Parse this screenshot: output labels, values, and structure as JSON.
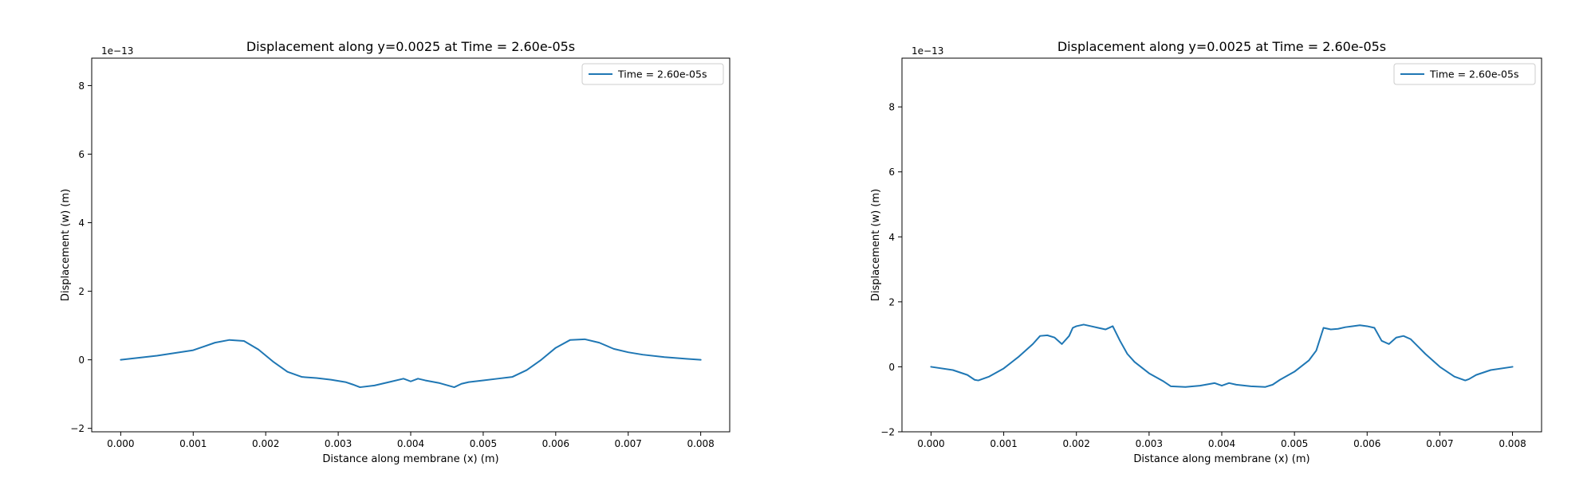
{
  "figure": {
    "background": "#ffffff",
    "line_color": "#1f77b4"
  },
  "chart_data": [
    {
      "type": "line",
      "title": "Displacement along y=0.0025 at Time = 2.60e-05s",
      "xlabel": "Distance along membrane (x) (m)",
      "ylabel": "Displacement (w) (m)",
      "y_offset_text": "1e−13",
      "xlim": [
        -0.0004,
        0.0084
      ],
      "ylim": [
        -2.1,
        8.8
      ],
      "xticks": [
        0.0,
        0.001,
        0.002,
        0.003,
        0.004,
        0.005,
        0.006,
        0.007,
        0.008
      ],
      "xtick_labels": [
        "0.000",
        "0.001",
        "0.002",
        "0.003",
        "0.004",
        "0.005",
        "0.006",
        "0.007",
        "0.008"
      ],
      "yticks": [
        -2,
        0,
        2,
        4,
        6,
        8
      ],
      "ytick_labels": [
        "−2",
        "0",
        "2",
        "4",
        "6",
        "8"
      ],
      "grid": false,
      "legend_position": "top-right",
      "series": [
        {
          "name": "Time = 2.60e-05s",
          "color": "#1f77b4",
          "x": [
            0.0,
            0.0005,
            0.001,
            0.0013,
            0.0015,
            0.0017,
            0.0019,
            0.0021,
            0.0023,
            0.0025,
            0.0027,
            0.0029,
            0.0031,
            0.0032,
            0.0033,
            0.0035,
            0.0037,
            0.0039,
            0.004,
            0.0041,
            0.0042,
            0.0044,
            0.0046,
            0.0047,
            0.0048,
            0.005,
            0.0052,
            0.0054,
            0.0056,
            0.0058,
            0.006,
            0.0062,
            0.0064,
            0.0066,
            0.0068,
            0.007,
            0.0072,
            0.0075,
            0.0078,
            0.008
          ],
          "y": [
            0.0,
            0.12,
            0.28,
            0.5,
            0.58,
            0.55,
            0.3,
            -0.05,
            -0.35,
            -0.5,
            -0.53,
            -0.58,
            -0.65,
            -0.72,
            -0.8,
            -0.75,
            -0.65,
            -0.55,
            -0.63,
            -0.55,
            -0.6,
            -0.68,
            -0.8,
            -0.7,
            -0.65,
            -0.6,
            -0.55,
            -0.5,
            -0.3,
            0.0,
            0.35,
            0.58,
            0.6,
            0.5,
            0.32,
            0.22,
            0.15,
            0.08,
            0.03,
            0.0
          ]
        }
      ]
    },
    {
      "type": "line",
      "title": "Displacement along y=0.0025 at Time = 2.60e-05s",
      "xlabel": "Distance along membrane (x) (m)",
      "ylabel": "Displacement (w) (m)",
      "y_offset_text": "1e−13",
      "xlim": [
        -0.0004,
        0.0084
      ],
      "ylim": [
        -2.0,
        9.5
      ],
      "xticks": [
        0.0,
        0.001,
        0.002,
        0.003,
        0.004,
        0.005,
        0.006,
        0.007,
        0.008
      ],
      "xtick_labels": [
        "0.000",
        "0.001",
        "0.002",
        "0.003",
        "0.004",
        "0.005",
        "0.006",
        "0.007",
        "0.008"
      ],
      "yticks": [
        -2,
        0,
        2,
        4,
        6,
        8
      ],
      "ytick_labels": [
        "−2",
        "0",
        "2",
        "4",
        "6",
        "8"
      ],
      "grid": false,
      "legend_position": "top-right",
      "series": [
        {
          "name": "Time = 2.60e-05s",
          "color": "#1f77b4",
          "x": [
            0.0,
            0.0003,
            0.0005,
            0.0006,
            0.00065,
            0.0008,
            0.001,
            0.0012,
            0.0014,
            0.0015,
            0.0016,
            0.0017,
            0.0018,
            0.0019,
            0.00195,
            0.002,
            0.0021,
            0.0022,
            0.0023,
            0.0024,
            0.0025,
            0.0026,
            0.0027,
            0.0028,
            0.003,
            0.0032,
            0.0033,
            0.0035,
            0.0037,
            0.0039,
            0.004,
            0.0041,
            0.0042,
            0.0044,
            0.0046,
            0.0047,
            0.0048,
            0.005,
            0.0052,
            0.0053,
            0.0054,
            0.0055,
            0.0056,
            0.0057,
            0.0058,
            0.0059,
            0.006,
            0.0061,
            0.0062,
            0.0063,
            0.0064,
            0.0065,
            0.0066,
            0.0068,
            0.007,
            0.0072,
            0.00735,
            0.0074,
            0.0075,
            0.0077,
            0.008
          ],
          "y": [
            0.0,
            -0.1,
            -0.25,
            -0.4,
            -0.42,
            -0.3,
            -0.05,
            0.3,
            0.7,
            0.95,
            0.97,
            0.9,
            0.7,
            0.95,
            1.2,
            1.25,
            1.3,
            1.25,
            1.2,
            1.15,
            1.25,
            0.8,
            0.4,
            0.15,
            -0.2,
            -0.45,
            -0.6,
            -0.62,
            -0.58,
            -0.5,
            -0.58,
            -0.5,
            -0.55,
            -0.6,
            -0.62,
            -0.55,
            -0.4,
            -0.15,
            0.2,
            0.5,
            1.2,
            1.15,
            1.17,
            1.22,
            1.25,
            1.28,
            1.25,
            1.2,
            0.8,
            0.7,
            0.9,
            0.95,
            0.85,
            0.4,
            0.0,
            -0.3,
            -0.42,
            -0.38,
            -0.25,
            -0.1,
            0.0
          ]
        }
      ]
    }
  ]
}
